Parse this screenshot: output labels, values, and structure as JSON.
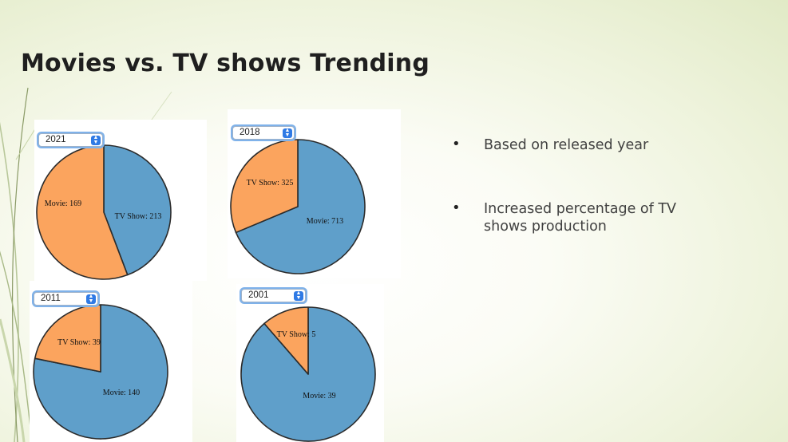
{
  "slide": {
    "title": "Movies vs. TV shows Trending",
    "bullets": [
      "Based on released year",
      "Increased percentage of TV shows production"
    ]
  },
  "colors": {
    "movie": "#5f9fca",
    "tv_show": "#fba45e",
    "outline": "#2b2b2b"
  },
  "icons": {
    "select_arrows": "up-down-chevron-icon",
    "bullet": "bullet-dot-icon"
  },
  "chart_data": [
    {
      "type": "pie",
      "selected_year": "2021",
      "labels": [
        "Movie",
        "TV Show"
      ],
      "values": [
        169,
        213
      ],
      "label_text": [
        "Movie: 169",
        "TV Show: 213"
      ]
    },
    {
      "type": "pie",
      "selected_year": "2018",
      "labels": [
        "Movie",
        "TV Show"
      ],
      "values": [
        713,
        325
      ],
      "label_text": [
        "Movie: 713",
        "TV Show: 325"
      ]
    },
    {
      "type": "pie",
      "selected_year": "2011",
      "labels": [
        "Movie",
        "TV Show"
      ],
      "values": [
        140,
        39
      ],
      "label_text": [
        "Movie: 140",
        "TV Show: 39"
      ]
    },
    {
      "type": "pie",
      "selected_year": "2001",
      "labels": [
        "Movie",
        "TV Show"
      ],
      "values": [
        39,
        5
      ],
      "label_text": [
        "Movie: 39",
        "TV Show: 5"
      ]
    }
  ]
}
